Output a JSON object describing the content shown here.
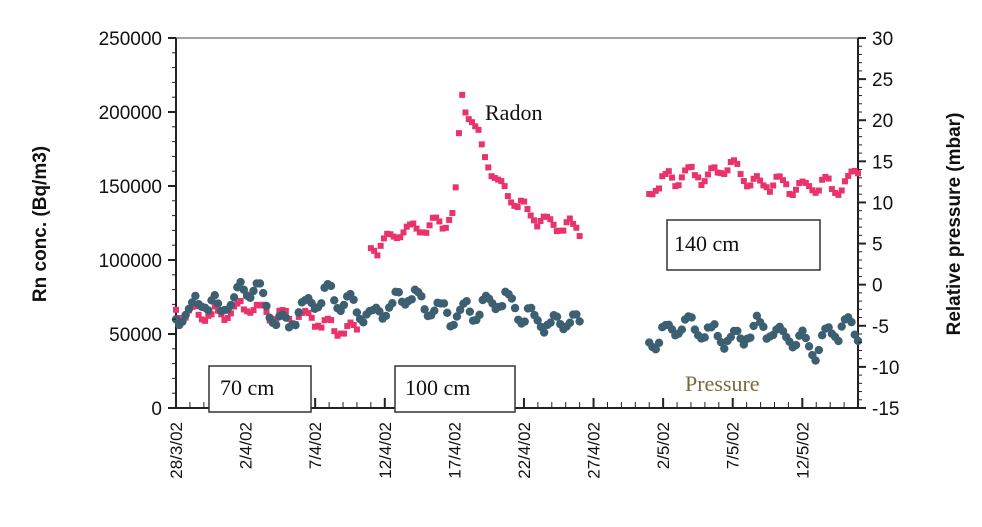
{
  "chart_data": {
    "type": "scatter",
    "title": "",
    "xlabel": "",
    "ylabel_left": "Rn conc. (Bq/m3)",
    "ylabel_right": "Relative pressure (mbar)",
    "ylim_left": [
      0,
      250000
    ],
    "ylim_right": [
      -15,
      30
    ],
    "yticks_left": [
      "0",
      "50000",
      "100000",
      "150000",
      "200000",
      "250000"
    ],
    "yticks_right": [
      "-15",
      "-10",
      "-5",
      "0",
      "5",
      "10",
      "15",
      "20",
      "25",
      "30"
    ],
    "x_range_days": [
      "28/3/02",
      "16/5/02"
    ],
    "x_tick_labels": [
      "28/3/02",
      "2/4/02",
      "7/4/02",
      "12/4/02",
      "17/4/02",
      "22/4/02",
      "27/4/02",
      "2/5/02",
      "7/5/02",
      "12/5/02"
    ],
    "colors": {
      "radon": "#e8336b",
      "pressure": "#3d5f72"
    },
    "series": [
      {
        "name": "Radon",
        "axis": "left",
        "segments": [
          {
            "x": [
              "28/3/02",
              "29/3/02",
              "30/3/02",
              "31/3/02",
              "1/4/02",
              "2/4/02",
              "3/4/02",
              "4/4/02",
              "5/4/02",
              "6/4/02",
              "7/4/02",
              "8/4/02",
              "9/4/02",
              "10/4/02"
            ],
            "y": [
              65000,
              64000,
              63000,
              62000,
              65000,
              68000,
              66000,
              63000,
              60000,
              62000,
              60000,
              55000,
              53000,
              52000
            ]
          },
          {
            "x": [
              "11/4/02",
              "12/4/02",
              "13/4/02",
              "14/4/02",
              "15/4/02",
              "16/4/02",
              "17/4/02",
              "17.5/4/02",
              "18/4/02",
              "19/4/02",
              "20/4/02",
              "21/4/02",
              "22/4/02",
              "23/4/02",
              "24/4/02",
              "25/4/02",
              "26/4/02"
            ],
            "y": [
              107000,
              112000,
              118000,
              121000,
              122000,
              125000,
              130000,
              212000,
              200000,
              175000,
              155000,
              143000,
              134000,
              128000,
              125000,
              122000,
              122000
            ]
          },
          {
            "x": [
              "1/5/02",
              "2/5/02",
              "3/5/02",
              "4/5/02",
              "5/5/02",
              "6/5/02",
              "7/5/02",
              "8/5/02",
              "9/5/02",
              "10/5/02",
              "11/5/02",
              "12/5/02",
              "13/5/02",
              "14/5/02",
              "15/5/02",
              "16/5/02"
            ],
            "y": [
              145000,
              155000,
              155000,
              160000,
              156000,
              160000,
              165000,
              155000,
              150000,
              153000,
              150000,
              148000,
              150000,
              150000,
              150000,
              163000
            ]
          }
        ]
      },
      {
        "name": "Pressure",
        "axis": "right",
        "segments": [
          {
            "x": [
              "28/3/02",
              "29/3/02",
              "30/3/02",
              "31/3/02",
              "1/4/02",
              "2/4/02",
              "3/4/02",
              "4/4/02",
              "5/4/02",
              "6/4/02",
              "7/4/02",
              "8/4/02",
              "9/4/02",
              "10/4/02",
              "11/4/02",
              "12/4/02",
              "13/4/02",
              "14/4/02",
              "15/4/02",
              "16/4/02",
              "17/4/02",
              "18/4/02",
              "19/4/02",
              "20/4/02",
              "21/4/02",
              "22/4/02",
              "23/4/02",
              "24/4/02",
              "25/4/02",
              "26/4/02"
            ],
            "y": [
              -4,
              -3,
              -2,
              -3,
              -2,
              0,
              -1,
              -4,
              -5,
              -3,
              -2,
              -1,
              -2,
              -3,
              -4,
              -3,
              -2,
              -1,
              -3,
              -3,
              -4,
              -3,
              -3,
              -2,
              -2,
              -4,
              -4,
              -5,
              -4,
              -5
            ]
          },
          {
            "x": [
              "1/5/02",
              "2/5/02",
              "3/5/02",
              "4/5/02",
              "5/5/02",
              "6/5/02",
              "7/5/02",
              "8/5/02",
              "9/5/02",
              "10/5/02",
              "11/5/02",
              "12/5/02",
              "13/5/02",
              "14/5/02",
              "15/5/02",
              "16/5/02"
            ],
            "y": [
              -7,
              -6,
              -5,
              -5,
              -6,
              -6,
              -7,
              -6,
              -5,
              -6,
              -6,
              -7,
              -8,
              -6,
              -5,
              -6
            ]
          }
        ]
      }
    ],
    "annotations": [
      "Radon",
      "Pressure",
      "70 cm",
      "100 cm",
      "140 cm"
    ]
  }
}
